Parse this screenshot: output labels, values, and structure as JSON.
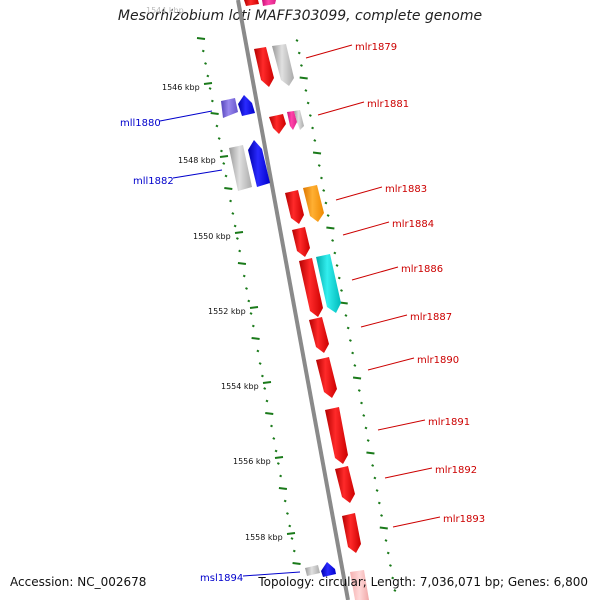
{
  "title": "Mesorhizobium loti MAFF303099, complete genome",
  "accession": "Accession: NC_002678",
  "topology": "Topology: circular; Length: 7,036,071 bp; Genes: 6,800",
  "colors": {
    "forward_gene": "#ee0000",
    "reverse_gene": "#0000ee",
    "forward_label": "#cc0000",
    "reverse_label": "#0000cc",
    "tick": "#1a7a1a",
    "backbone": "#888888",
    "gray_gene": "#b8b8b8",
    "orange_gene": "#ff9900",
    "cyan_gene": "#00cccc",
    "pink_gene": "#ee2288",
    "purple_gene": "#7766dd"
  },
  "kbp_labels": [
    "1546 kbp",
    "1548 kbp",
    "1550 kbp",
    "1552 kbp",
    "1554 kbp",
    "1556 kbp",
    "1558 kbp"
  ],
  "forward_labels": [
    "mlr1879",
    "mlr1881",
    "mlr1883",
    "mlr1884",
    "mlr1886",
    "mlr1887",
    "mlr1890",
    "mlr1891",
    "mlr1892",
    "mlr1893"
  ],
  "reverse_labels": [
    "mll1880",
    "mll1882",
    "msl1894"
  ]
}
